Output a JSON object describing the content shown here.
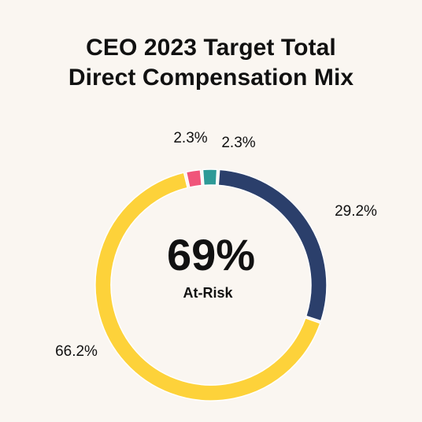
{
  "chart_data": {
    "type": "pie",
    "title": [
      "CEO 2023 Target Total",
      "Direct Compensation Mix"
    ],
    "center_value": "69%",
    "center_caption": "At-Risk",
    "slices": [
      {
        "value": 2.3,
        "label": "2.3%",
        "color": "#2e9a97"
      },
      {
        "value": 29.2,
        "label": "29.2%",
        "color": "#2b3f6b"
      },
      {
        "value": 66.2,
        "label": "66.2%",
        "color": "#fdd23a"
      },
      {
        "value": 2.3,
        "label": "2.3%",
        "color": "#f0557a"
      }
    ],
    "background": "#faf6f1"
  }
}
